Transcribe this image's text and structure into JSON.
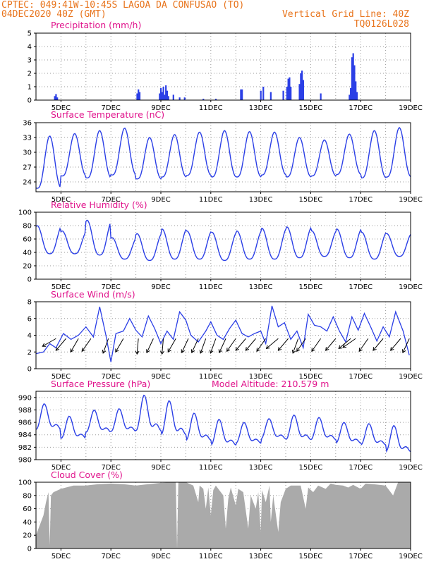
{
  "header": {
    "station": "CPTEC:  049:41W-10:45S  LAGOA DA CONFUSAO (TO)",
    "run": "04DEC2020 40Z (GMT)",
    "grid_note": "Vertical Grid Line: 40Z",
    "code": "TQ0126L028"
  },
  "colors": {
    "header": "#e8741c",
    "titles": "#e0148c",
    "series": "#2b3fe6",
    "cloud": "#aaaaaa",
    "grid": "#9a9a9a",
    "vectors": "#000000"
  },
  "chart_data": [
    {
      "id": "precip",
      "type": "bar",
      "title": "Precipitation (mm/h)",
      "ylim": [
        0,
        5
      ],
      "yticks": [
        "0",
        "1",
        "2",
        "3",
        "4",
        "5"
      ],
      "xlim": [
        4,
        19
      ],
      "x_tick_labels": [
        "5DEC",
        "7DEC",
        "9DEC",
        "11DEC",
        "13DEC",
        "15DEC",
        "17DEC",
        "19DEC"
      ],
      "events": [
        [
          4.75,
          0.3
        ],
        [
          4.8,
          0.45
        ],
        [
          4.85,
          0.2
        ],
        [
          8.05,
          0.5
        ],
        [
          8.1,
          0.8
        ],
        [
          8.15,
          0.6
        ],
        [
          8.95,
          0.5
        ],
        [
          9.0,
          0.9
        ],
        [
          9.05,
          0.6
        ],
        [
          9.1,
          1.0
        ],
        [
          9.15,
          0.4
        ],
        [
          9.2,
          1.1
        ],
        [
          9.25,
          0.7
        ],
        [
          9.3,
          0.3
        ],
        [
          9.5,
          0.4
        ],
        [
          9.75,
          0.2
        ],
        [
          9.95,
          0.2
        ],
        [
          10.7,
          0.1
        ],
        [
          11.2,
          0.1
        ],
        [
          12.2,
          0.8
        ],
        [
          12.25,
          0.8
        ],
        [
          13.0,
          0.7
        ],
        [
          13.1,
          1.0
        ],
        [
          13.4,
          0.6
        ],
        [
          13.9,
          0.7
        ],
        [
          14.05,
          1.0
        ],
        [
          14.1,
          1.6
        ],
        [
          14.15,
          1.7
        ],
        [
          14.2,
          1.0
        ],
        [
          14.55,
          1.2
        ],
        [
          14.6,
          2.0
        ],
        [
          14.65,
          2.2
        ],
        [
          14.7,
          1.5
        ],
        [
          15.4,
          0.5
        ],
        [
          16.55,
          0.4
        ],
        [
          16.6,
          0.9
        ],
        [
          16.65,
          3.2
        ],
        [
          16.7,
          3.5
        ],
        [
          16.75,
          2.6
        ],
        [
          16.8,
          1.4
        ],
        [
          16.85,
          0.6
        ]
      ]
    },
    {
      "id": "temp",
      "type": "line",
      "title": "Surface Temperature (nC)",
      "ylim": [
        22,
        36
      ],
      "yticks": [
        "24",
        "27",
        "30",
        "33",
        "36"
      ],
      "xlim": [
        4,
        19
      ],
      "x_tick_labels": [
        "5DEC",
        "7DEC",
        "9DEC",
        "11DEC",
        "13DEC",
        "15DEC",
        "17DEC",
        "19DEC"
      ],
      "daily": [
        {
          "min": 22.7,
          "max": 33.3
        },
        {
          "min": 25.2,
          "max": 33.8
        },
        {
          "min": 24.8,
          "max": 34.4
        },
        {
          "min": 25.4,
          "max": 34.9
        },
        {
          "min": 24.6,
          "max": 33.0
        },
        {
          "min": 25.0,
          "max": 33.6
        },
        {
          "min": 25.3,
          "max": 34.1
        },
        {
          "min": 25.0,
          "max": 34.4
        },
        {
          "min": 25.0,
          "max": 34.2
        },
        {
          "min": 25.4,
          "max": 34.1
        },
        {
          "min": 25.0,
          "max": 33.0
        },
        {
          "min": 25.2,
          "max": 32.5
        },
        {
          "min": 25.5,
          "max": 33.7
        },
        {
          "min": 24.8,
          "max": 34.4
        },
        {
          "min": 25.0,
          "max": 35.0
        }
      ]
    },
    {
      "id": "rh",
      "type": "line",
      "title": "Relative Humidity (%)",
      "ylim": [
        0,
        100
      ],
      "yticks": [
        "0",
        "20",
        "40",
        "60",
        "80",
        "100"
      ],
      "xlim": [
        4,
        19
      ],
      "x_tick_labels": [
        "5DEC",
        "7DEC",
        "9DEC",
        "11DEC",
        "13DEC",
        "15DEC",
        "17DEC",
        "19DEC"
      ],
      "daily": [
        {
          "min": 38,
          "max": 80
        },
        {
          "min": 38,
          "max": 72
        },
        {
          "min": 36,
          "max": 88
        },
        {
          "min": 30,
          "max": 62
        },
        {
          "min": 28,
          "max": 68
        },
        {
          "min": 30,
          "max": 75
        },
        {
          "min": 30,
          "max": 72
        },
        {
          "min": 28,
          "max": 70
        },
        {
          "min": 30,
          "max": 72
        },
        {
          "min": 30,
          "max": 76
        },
        {
          "min": 32,
          "max": 78
        },
        {
          "min": 34,
          "max": 72
        },
        {
          "min": 32,
          "max": 75
        },
        {
          "min": 30,
          "max": 70
        },
        {
          "min": 34,
          "max": 68
        }
      ]
    },
    {
      "id": "wind",
      "type": "line",
      "title": "Surface Wind (m/s)",
      "ylim": [
        0,
        8
      ],
      "yticks": [
        "0",
        "2",
        "4",
        "6",
        "8"
      ],
      "xlim": [
        4,
        19
      ],
      "x_tick_labels": [
        "5DEC",
        "7DEC",
        "9DEC",
        "11DEC",
        "13DEC",
        "15DEC",
        "17DEC",
        "19DEC"
      ],
      "speed": [
        [
          4.0,
          1.8
        ],
        [
          4.3,
          2.0
        ],
        [
          4.55,
          3.0
        ],
        [
          4.8,
          2.5
        ],
        [
          5.1,
          4.2
        ],
        [
          5.4,
          3.5
        ],
        [
          5.7,
          4.0
        ],
        [
          6.0,
          5.0
        ],
        [
          6.3,
          3.8
        ],
        [
          6.55,
          7.4
        ],
        [
          6.8,
          4.0
        ],
        [
          7.0,
          0.8
        ],
        [
          7.2,
          4.2
        ],
        [
          7.5,
          4.5
        ],
        [
          7.75,
          6.0
        ],
        [
          8.0,
          4.6
        ],
        [
          8.25,
          3.8
        ],
        [
          8.5,
          6.3
        ],
        [
          8.75,
          4.8
        ],
        [
          9.0,
          3.0
        ],
        [
          9.25,
          4.5
        ],
        [
          9.5,
          3.5
        ],
        [
          9.75,
          6.8
        ],
        [
          10.0,
          5.8
        ],
        [
          10.2,
          4.0
        ],
        [
          10.5,
          3.2
        ],
        [
          10.8,
          4.5
        ],
        [
          11.0,
          5.6
        ],
        [
          11.25,
          4.0
        ],
        [
          11.5,
          3.5
        ],
        [
          11.75,
          4.8
        ],
        [
          12.0,
          5.8
        ],
        [
          12.25,
          4.2
        ],
        [
          12.5,
          3.8
        ],
        [
          12.75,
          4.2
        ],
        [
          13.0,
          4.5
        ],
        [
          13.2,
          3.0
        ],
        [
          13.45,
          7.5
        ],
        [
          13.7,
          5.0
        ],
        [
          13.95,
          5.5
        ],
        [
          14.2,
          3.5
        ],
        [
          14.45,
          4.5
        ],
        [
          14.7,
          2.5
        ],
        [
          14.9,
          6.5
        ],
        [
          15.15,
          5.2
        ],
        [
          15.4,
          5.0
        ],
        [
          15.65,
          4.5
        ],
        [
          15.9,
          6.2
        ],
        [
          16.15,
          4.5
        ],
        [
          16.4,
          3.2
        ],
        [
          16.65,
          6.2
        ],
        [
          16.9,
          4.6
        ],
        [
          17.15,
          6.6
        ],
        [
          17.4,
          5.0
        ],
        [
          17.65,
          3.3
        ],
        [
          17.9,
          5.0
        ],
        [
          18.15,
          3.8
        ],
        [
          18.4,
          6.8
        ],
        [
          18.7,
          4.5
        ],
        [
          18.95,
          1.6
        ]
      ],
      "vectors": [
        [
          4.8,
          240
        ],
        [
          5.2,
          220
        ],
        [
          5.7,
          210
        ],
        [
          6.2,
          215
        ],
        [
          6.9,
          200
        ],
        [
          7.5,
          210
        ],
        [
          8.1,
          185
        ],
        [
          8.7,
          205
        ],
        [
          9.1,
          185
        ],
        [
          9.6,
          210
        ],
        [
          10.1,
          205
        ],
        [
          10.5,
          205
        ],
        [
          10.8,
          200
        ],
        [
          11.2,
          200
        ],
        [
          11.6,
          205
        ],
        [
          12.0,
          215
        ],
        [
          12.4,
          220
        ],
        [
          12.8,
          220
        ],
        [
          13.2,
          215
        ],
        [
          13.7,
          230
        ],
        [
          14.1,
          220
        ],
        [
          14.5,
          200
        ],
        [
          14.8,
          215
        ],
        [
          15.4,
          215
        ],
        [
          16.0,
          220
        ],
        [
          16.6,
          230
        ],
        [
          16.8,
          235
        ],
        [
          17.3,
          215
        ],
        [
          17.9,
          220
        ],
        [
          18.6,
          220
        ],
        [
          18.95,
          205
        ]
      ]
    },
    {
      "id": "press",
      "type": "line",
      "title": "Surface Pressure (hPa)",
      "annotation": "Model Altitude: 210.579 m",
      "ylim": [
        980,
        991
      ],
      "yticks": [
        "980",
        "982",
        "984",
        "986",
        "988",
        "990"
      ],
      "xlim": [
        4,
        19
      ],
      "x_tick_labels": [
        "5DEC",
        "7DEC",
        "9DEC",
        "11DEC",
        "13DEC",
        "15DEC",
        "17DEC",
        "19DEC"
      ],
      "daily": [
        {
          "max": 989.0,
          "min": 983.8
        },
        {
          "max": 987.0,
          "min": 982.5
        },
        {
          "max": 988.0,
          "min": 983.5
        },
        {
          "max": 988.2,
          "min": 983.6
        },
        {
          "max": 990.4,
          "min": 983.2
        },
        {
          "max": 989.5,
          "min": 982.6
        },
        {
          "max": 987.5,
          "min": 982.0
        },
        {
          "max": 986.5,
          "min": 981.3
        },
        {
          "max": 986.0,
          "min": 981.8
        },
        {
          "max": 986.6,
          "min": 982.5
        },
        {
          "max": 987.2,
          "min": 982.2
        },
        {
          "max": 986.8,
          "min": 982.3
        },
        {
          "max": 986.0,
          "min": 981.8
        },
        {
          "max": 985.8,
          "min": 981.5
        },
        {
          "max": 985.5,
          "min": 980.2
        }
      ]
    },
    {
      "id": "cloud",
      "type": "area",
      "title": "Cloud Cover (%)",
      "ylim": [
        0,
        100
      ],
      "yticks": [
        "0",
        "20",
        "40",
        "60",
        "80",
        "100"
      ],
      "xlim": [
        4,
        19
      ],
      "x_tick_labels": [
        "5DEC",
        "7DEC",
        "9DEC",
        "11DEC",
        "13DEC",
        "15DEC",
        "17DEC",
        "19DEC"
      ],
      "points": [
        [
          4.0,
          20
        ],
        [
          4.15,
          35
        ],
        [
          4.3,
          50
        ],
        [
          4.4,
          70
        ],
        [
          4.5,
          85
        ],
        [
          4.55,
          5
        ],
        [
          4.6,
          80
        ],
        [
          4.7,
          85
        ],
        [
          5.0,
          90
        ],
        [
          5.5,
          95
        ],
        [
          6.0,
          95
        ],
        [
          6.5,
          97
        ],
        [
          7.0,
          98
        ],
        [
          7.5,
          97
        ],
        [
          8.0,
          95
        ],
        [
          8.5,
          97
        ],
        [
          9.0,
          99
        ],
        [
          9.5,
          100
        ],
        [
          9.6,
          100
        ],
        [
          9.65,
          0
        ],
        [
          9.7,
          100
        ],
        [
          10.0,
          100
        ],
        [
          10.3,
          95
        ],
        [
          10.5,
          70
        ],
        [
          10.55,
          95
        ],
        [
          10.7,
          90
        ],
        [
          10.8,
          60
        ],
        [
          10.9,
          92
        ],
        [
          11.0,
          50
        ],
        [
          11.1,
          88
        ],
        [
          11.2,
          95
        ],
        [
          11.5,
          80
        ],
        [
          11.6,
          30
        ],
        [
          11.7,
          75
        ],
        [
          11.8,
          92
        ],
        [
          12.0,
          65
        ],
        [
          12.1,
          90
        ],
        [
          12.3,
          85
        ],
        [
          12.5,
          30
        ],
        [
          12.6,
          80
        ],
        [
          12.8,
          60
        ],
        [
          12.9,
          85
        ],
        [
          13.0,
          25
        ],
        [
          13.05,
          88
        ],
        [
          13.2,
          70
        ],
        [
          13.35,
          95
        ],
        [
          13.4,
          40
        ],
        [
          13.5,
          80
        ],
        [
          13.7,
          25
        ],
        [
          13.8,
          70
        ],
        [
          14.0,
          90
        ],
        [
          14.2,
          95
        ],
        [
          14.6,
          95
        ],
        [
          14.8,
          60
        ],
        [
          14.9,
          92
        ],
        [
          15.1,
          85
        ],
        [
          15.3,
          95
        ],
        [
          15.6,
          90
        ],
        [
          15.8,
          98
        ],
        [
          16.0,
          96
        ],
        [
          16.3,
          95
        ],
        [
          16.5,
          92
        ],
        [
          16.7,
          96
        ],
        [
          17.0,
          90
        ],
        [
          17.2,
          98
        ],
        [
          17.5,
          97
        ],
        [
          18.0,
          95
        ],
        [
          18.3,
          80
        ],
        [
          18.5,
          100
        ],
        [
          18.8,
          100
        ],
        [
          19.0,
          100
        ]
      ]
    }
  ]
}
